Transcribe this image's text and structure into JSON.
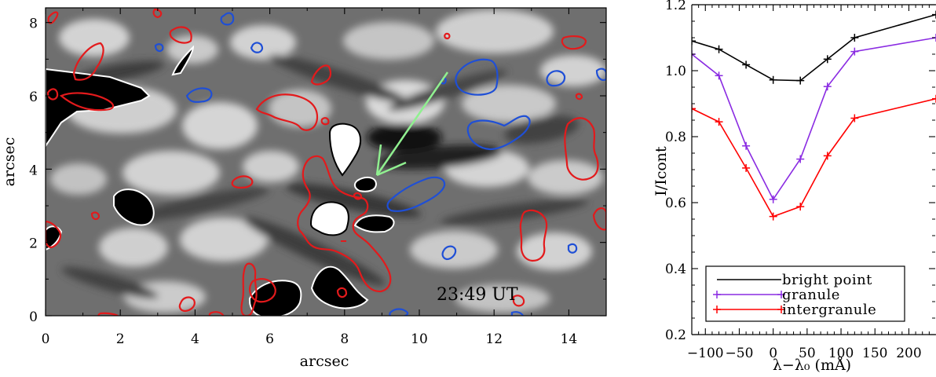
{
  "left_panel": {
    "type": "image",
    "xlabel": "arcsec",
    "ylabel": "arcsec",
    "xlim": [
      0,
      15
    ],
    "ylim": [
      0,
      8.4
    ],
    "xticks": [
      0,
      2,
      4,
      6,
      8,
      10,
      12,
      14
    ],
    "yticks": [
      0,
      2,
      4,
      6,
      8
    ],
    "timestamp": "23:49 UT",
    "arrow_color": "#90f090",
    "contour_colors": {
      "positive": "#e31a1c",
      "negative": "#1f4fd6"
    }
  },
  "chart_data": {
    "type": "line",
    "xlabel": "λ−λ₀ (mÅ)",
    "ylabel": "I/Icont",
    "xlim": [
      -120,
      240
    ],
    "ylim": [
      0.2,
      1.2
    ],
    "xticks": [
      -100,
      -50,
      0,
      50,
      100,
      150,
      200
    ],
    "xtick_labels": [
      "−100",
      "−50",
      "0",
      "50",
      "100",
      "150",
      "200"
    ],
    "yticks": [
      0.2,
      0.4,
      0.6,
      0.8,
      1.0,
      1.2
    ],
    "ytick_labels": [
      "0.2",
      "0.4",
      "0.6",
      "0.8",
      "1.0",
      "1.2"
    ],
    "x": [
      -120,
      -80,
      -40,
      0,
      40,
      80,
      120,
      240
    ],
    "series": [
      {
        "name": "bright point",
        "color": "#000000",
        "values": [
          1.09,
          1.065,
          1.018,
          0.972,
          0.97,
          1.035,
          1.1,
          1.17
        ]
      },
      {
        "name": "granule",
        "color": "#8a2be2",
        "values": [
          1.05,
          0.985,
          0.772,
          0.61,
          0.732,
          0.952,
          1.058,
          1.1
        ]
      },
      {
        "name": "intergranule",
        "color": "#ff0000",
        "values": [
          0.885,
          0.845,
          0.705,
          0.558,
          0.588,
          0.742,
          0.856,
          0.915
        ]
      }
    ],
    "legend": {
      "placement": "bottom-left",
      "items": [
        "bright point",
        "granule",
        "intergranule"
      ]
    }
  }
}
